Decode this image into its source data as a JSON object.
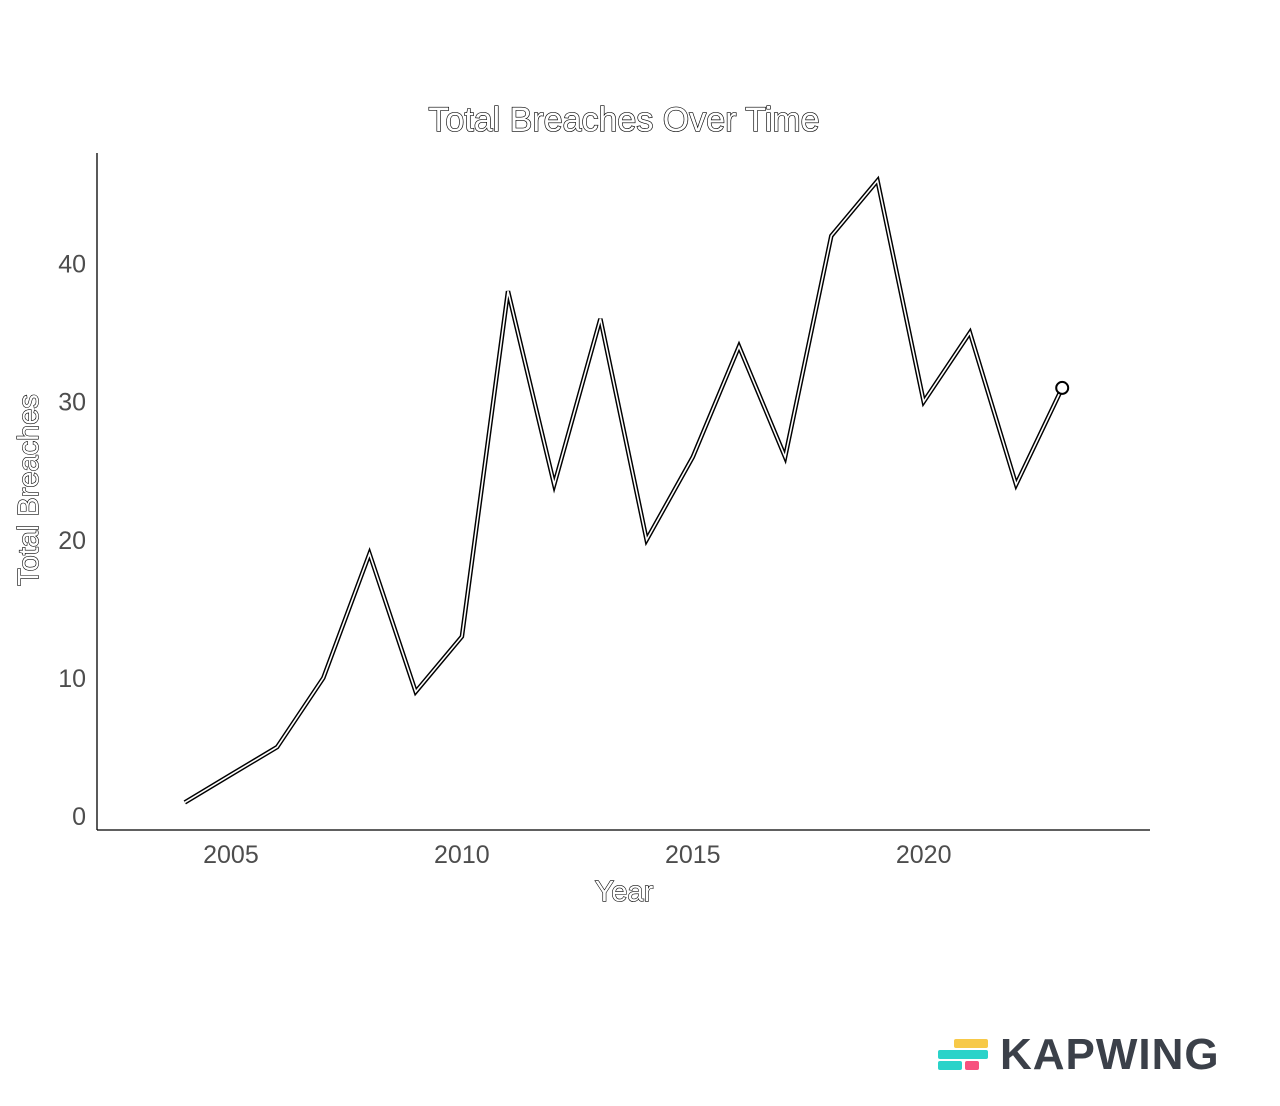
{
  "chart_data": {
    "type": "line",
    "title": "Total Breaches Over Time",
    "xlabel": "Year",
    "ylabel": "Total Breaches",
    "x": [
      2004,
      2005,
      2006,
      2007,
      2008,
      2009,
      2010,
      2011,
      2012,
      2013,
      2014,
      2015,
      2016,
      2017,
      2018,
      2019,
      2020,
      2021,
      2022,
      2023
    ],
    "series": [
      {
        "values": [
          1,
          3,
          5,
          10,
          19,
          9,
          13,
          38,
          24,
          36,
          20,
          26,
          34,
          26,
          42,
          46,
          30,
          35,
          24,
          31
        ]
      }
    ],
    "xlim": [
      2002.1,
      2024.9
    ],
    "ylim": [
      -1,
      48
    ],
    "x_ticks": [
      2005,
      2010,
      2015,
      2020
    ],
    "y_ticks": [
      0,
      10,
      20,
      30,
      40
    ],
    "grid": false,
    "legend": "none",
    "end_marker": "open-circle",
    "colors": {
      "line": "#000000",
      "tick_text": "#4d4d4d",
      "axis": "#000000"
    }
  },
  "watermark": {
    "text": "KAPWING",
    "icon": "kapwing-logo-icon",
    "colors": {
      "yellow": "#f7c948",
      "cyan": "#2ad3c9",
      "pink": "#f7527e",
      "text": "#3b4049"
    }
  }
}
